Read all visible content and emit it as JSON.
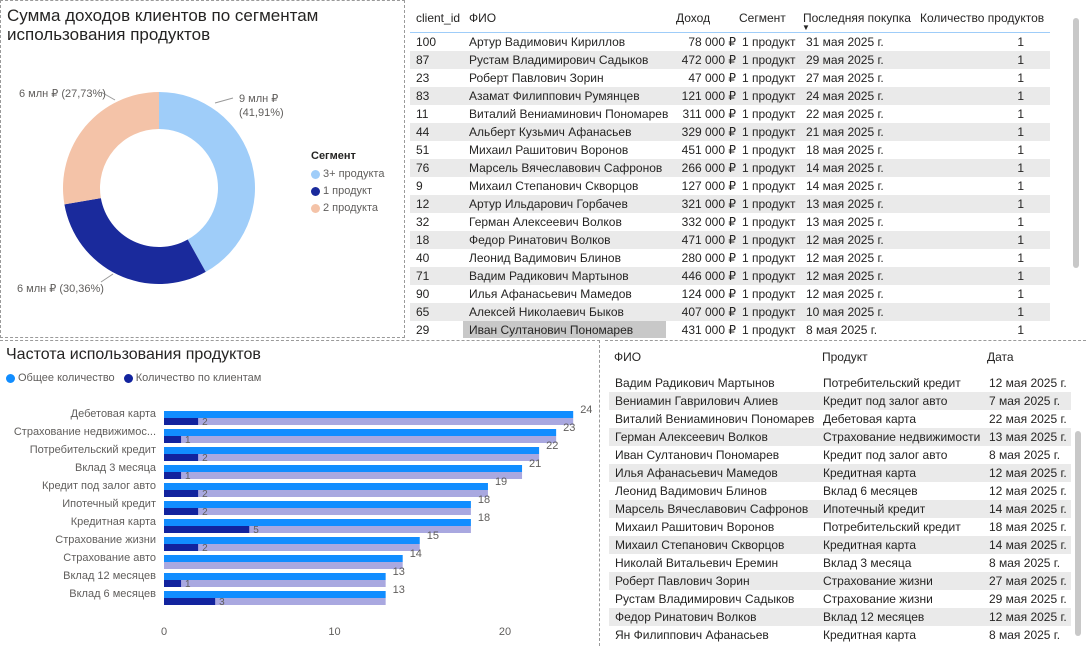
{
  "colors": {
    "light_blue": "#9fcdf9",
    "dark_blue": "#1a2a9c",
    "peach": "#f4c3a8",
    "bar_total": "#118dff",
    "bar_client": "#12239e",
    "bar_bg": "#a9a8e0"
  },
  "donut": {
    "title_line1": "Сумма доходов клиентов по сегментам",
    "title_line2": "использования продуктов",
    "legend_title": "Сегмент",
    "legend": [
      "3+ продукта",
      "1 продукт",
      "2 продукта"
    ],
    "labels": {
      "light_a": "9 млн ₽",
      "light_b": "(41,91%)",
      "dark": "6 млн ₽ (30,36%)",
      "peach": "6 млн ₽ (27,73%)"
    }
  },
  "clients": {
    "headers": [
      "client_id",
      "ФИО",
      "Доход",
      "Сегмент",
      "Последняя покупка",
      "Количество продуктов"
    ],
    "rows": [
      [
        "100",
        "Артур Вадимович Кириллов",
        "78 000 ₽",
        "1 продукт",
        "31 мая 2025 г.",
        "1"
      ],
      [
        "87",
        "Рустам Владимирович Садыков",
        "472 000 ₽",
        "1 продукт",
        "29 мая 2025 г.",
        "1"
      ],
      [
        "23",
        "Роберт Павлович Зорин",
        "47 000 ₽",
        "1 продукт",
        "27 мая 2025 г.",
        "1"
      ],
      [
        "83",
        "Азамат Филиппович Румянцев",
        "121 000 ₽",
        "1 продукт",
        "24 мая 2025 г.",
        "1"
      ],
      [
        "11",
        "Виталий Вениаминович Пономарев",
        "311 000 ₽",
        "1 продукт",
        "22 мая 2025 г.",
        "1"
      ],
      [
        "44",
        "Альберт Кузьмич Афанасьев",
        "329 000 ₽",
        "1 продукт",
        "21 мая 2025 г.",
        "1"
      ],
      [
        "51",
        "Михаил Рашитович Воронов",
        "451 000 ₽",
        "1 продукт",
        "18 мая 2025 г.",
        "1"
      ],
      [
        "76",
        "Марсель Вячеславович Сафронов",
        "266 000 ₽",
        "1 продукт",
        "14 мая 2025 г.",
        "1"
      ],
      [
        "9",
        "Михаил Степанович Скворцов",
        "127 000 ₽",
        "1 продукт",
        "14 мая 2025 г.",
        "1"
      ],
      [
        "12",
        "Артур Ильдарович Горбачев",
        "321 000 ₽",
        "1 продукт",
        "13 мая 2025 г.",
        "1"
      ],
      [
        "32",
        "Герман Алексеевич Волков",
        "332 000 ₽",
        "1 продукт",
        "13 мая 2025 г.",
        "1"
      ],
      [
        "18",
        "Федор Ринатович Волков",
        "471 000 ₽",
        "1 продукт",
        "12 мая 2025 г.",
        "1"
      ],
      [
        "40",
        "Леонид Вадимович Блинов",
        "280 000 ₽",
        "1 продукт",
        "12 мая 2025 г.",
        "1"
      ],
      [
        "71",
        "Вадим Радикович Мартынов",
        "446 000 ₽",
        "1 продукт",
        "12 мая 2025 г.",
        "1"
      ],
      [
        "90",
        "Илья Афанасьевич Мамедов",
        "124 000 ₽",
        "1 продукт",
        "12 мая 2025 г.",
        "1"
      ],
      [
        "65",
        "Алексей Николаевич Быков",
        "407 000 ₽",
        "1 продукт",
        "10 мая 2025 г.",
        "1"
      ],
      [
        "29",
        "Иван Султанович Пономарев",
        "431 000 ₽",
        "1 продукт",
        "8 мая 2025 г.",
        "1"
      ]
    ]
  },
  "chart_data": {
    "type": "bar",
    "title": "Частота использования продуктов",
    "orientation": "horizontal",
    "categories": [
      "Дебетовая карта",
      "Страхование недвижимос...",
      "Потребительский кредит",
      "Вклад 3 месяца",
      "Кредит под залог авто",
      "Ипотечный кредит",
      "Кредитная карта",
      "Страхование жизни",
      "Страхование авто",
      "Вклад 12 месяцев",
      "Вклад 6 месяцев"
    ],
    "series": [
      {
        "name": "Общее количество",
        "values": [
          24,
          23,
          22,
          21,
          19,
          18,
          18,
          15,
          14,
          13,
          13
        ]
      },
      {
        "name": "Количество по клиентам",
        "values": [
          2,
          1,
          2,
          1,
          2,
          2,
          5,
          2,
          null,
          1,
          3
        ]
      }
    ],
    "xlim": [
      0,
      25
    ],
    "xticks": [
      "0",
      "10",
      "20"
    ],
    "legend_position": "top-left"
  },
  "purchases": {
    "headers": [
      "ФИО",
      "Продукт",
      "Дата"
    ],
    "rows": [
      [
        "Вадим Радикович Мартынов",
        "Потребительский кредит",
        "12 мая 2025 г."
      ],
      [
        "Вениамин Гаврилович Алиев",
        "Кредит под залог авто",
        "7 мая 2025 г."
      ],
      [
        "Виталий Вениаминович Пономарев",
        "Дебетовая карта",
        "22 мая 2025 г."
      ],
      [
        "Герман Алексеевич Волков",
        "Страхование недвижимости",
        "13 мая 2025 г."
      ],
      [
        "Иван Султанович Пономарев",
        "Кредит под залог авто",
        "8 мая 2025 г."
      ],
      [
        "Илья Афанасьевич Мамедов",
        "Кредитная карта",
        "12 мая 2025 г."
      ],
      [
        "Леонид Вадимович Блинов",
        "Вклад 6 месяцев",
        "12 мая 2025 г."
      ],
      [
        "Марсель Вячеславович Сафронов",
        "Ипотечный кредит",
        "14 мая 2025 г."
      ],
      [
        "Михаил Рашитович Воронов",
        "Потребительский кредит",
        "18 мая 2025 г."
      ],
      [
        "Михаил Степанович Скворцов",
        "Кредитная карта",
        "14 мая 2025 г."
      ],
      [
        "Николай Витальевич Еремин",
        "Вклад 3 месяца",
        "8 мая 2025 г."
      ],
      [
        "Роберт Павлович Зорин",
        "Страхование жизни",
        "27 мая 2025 г."
      ],
      [
        "Рустам Владимирович Садыков",
        "Страхование жизни",
        "29 мая 2025 г."
      ],
      [
        "Федор Ринатович Волков",
        "Вклад 12 месяцев",
        "12 мая 2025 г."
      ],
      [
        "Ян Филиппович Афанасьев",
        "Кредитная карта",
        "8 мая 2025 г."
      ]
    ]
  }
}
